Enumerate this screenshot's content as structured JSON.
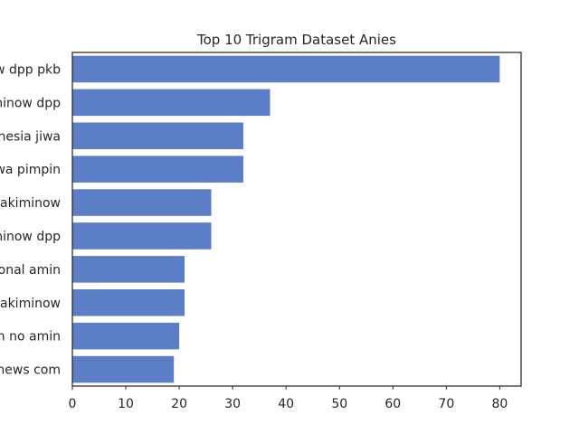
{
  "chart_data": {
    "type": "bar",
    "orientation": "horizontal",
    "title": "Top 10 Trigram Dataset Anies",
    "xlabel": "",
    "ylabel": "",
    "categories": [
      "w dpp pkb",
      "minow dpp",
      "nesia jiwa",
      "wa pimpin",
      "cakiminow",
      "minow dpp",
      "onal amin",
      "cakiminow",
      "n no amin",
      "news com"
    ],
    "values": [
      80,
      37,
      32,
      32,
      26,
      26,
      21,
      21,
      20,
      19
    ],
    "xlim": [
      0,
      84
    ],
    "xticks": [
      0,
      10,
      20,
      30,
      40,
      50,
      60,
      70,
      80
    ],
    "grid": false,
    "bar_color": "#5b7ec6"
  }
}
